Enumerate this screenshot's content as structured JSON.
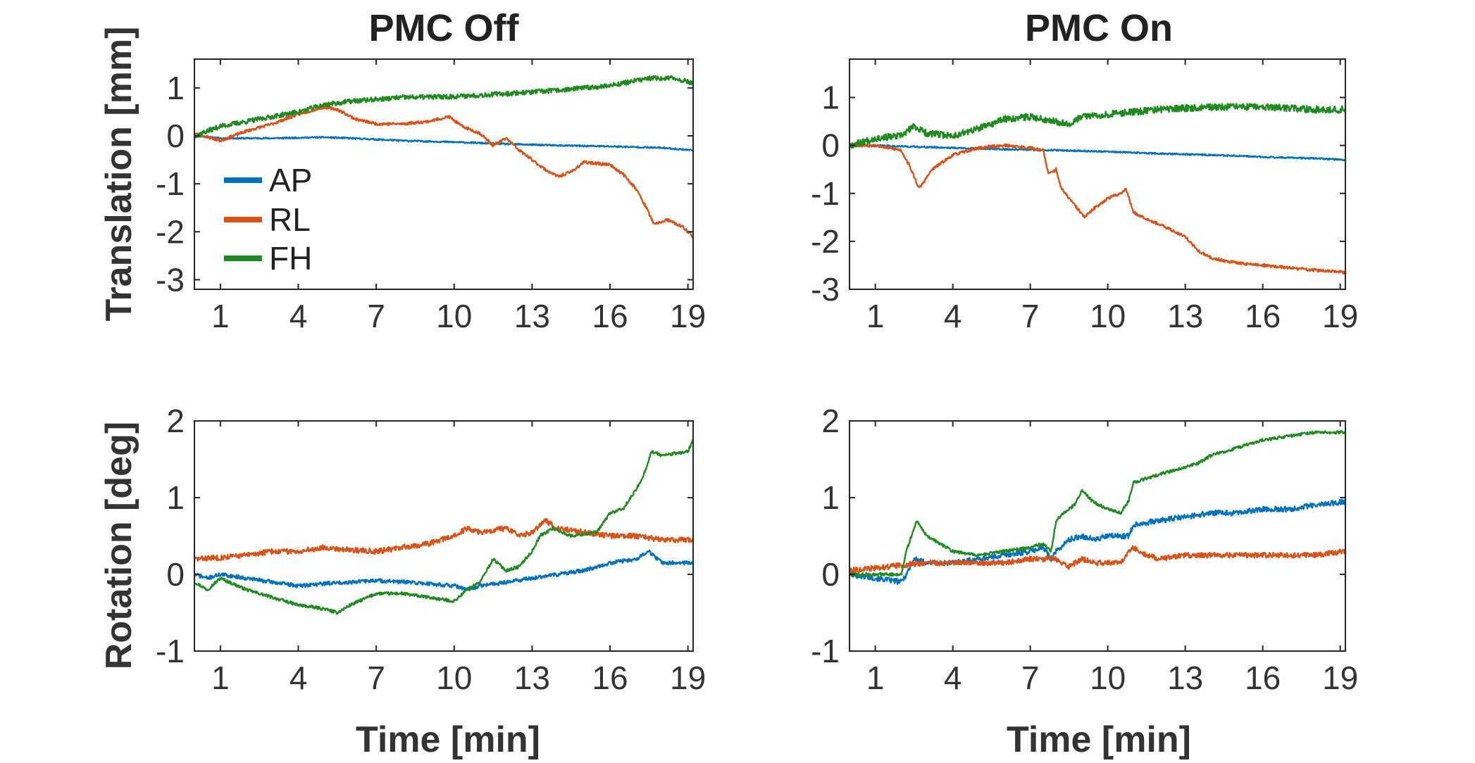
{
  "figure": {
    "colors": {
      "AP": "#0072BD",
      "RL": "#D95319",
      "FH": "#1F8A1F",
      "axis": "#262626",
      "text": "#333333"
    },
    "legend": {
      "entries": [
        "AP",
        "RL",
        "FH"
      ],
      "placement": "inside-left of top-left panel"
    }
  },
  "chart_data": [
    {
      "id": "trans_off",
      "type": "line",
      "title": "PMC Off",
      "xlabel": "",
      "ylabel": "Translation [mm]",
      "xlim": [
        0,
        19.2
      ],
      "ylim": [
        -3.2,
        1.6
      ],
      "xticks": [
        1,
        4,
        7,
        10,
        13,
        16,
        19
      ],
      "yticks": [
        -3,
        -2,
        -1,
        0,
        1
      ],
      "series": [
        {
          "name": "AP",
          "color": "#0072BD",
          "noise": 0.015,
          "seed": 11,
          "x": [
            0,
            1,
            3,
            5,
            6,
            8,
            10,
            12,
            14,
            16,
            18,
            19.2
          ],
          "y": [
            0.0,
            -0.05,
            -0.05,
            -0.03,
            -0.05,
            -0.1,
            -0.13,
            -0.17,
            -0.2,
            -0.22,
            -0.25,
            -0.3
          ]
        },
        {
          "name": "RL",
          "color": "#D95319",
          "noise": 0.03,
          "seed": 23,
          "x": [
            0,
            1,
            2,
            3,
            4,
            5,
            5.5,
            6.2,
            7,
            8,
            9,
            9.8,
            10.3,
            11,
            11.5,
            12,
            12.5,
            13,
            13.5,
            14,
            14.5,
            15,
            16,
            16.5,
            17,
            17.4,
            17.7,
            18.2,
            18.8,
            19.2
          ],
          "y": [
            0.05,
            -0.1,
            0.1,
            0.25,
            0.45,
            0.6,
            0.55,
            0.35,
            0.25,
            0.25,
            0.3,
            0.4,
            0.2,
            0.05,
            -0.2,
            -0.05,
            -0.3,
            -0.5,
            -0.7,
            -0.85,
            -0.75,
            -0.55,
            -0.6,
            -0.8,
            -1.1,
            -1.5,
            -1.85,
            -1.75,
            -1.9,
            -2.1
          ]
        },
        {
          "name": "FH",
          "color": "#1F8A1F",
          "noise": 0.05,
          "seed": 37,
          "x": [
            0,
            1,
            2,
            3,
            4,
            5,
            6,
            8,
            10,
            12,
            14,
            16,
            17.5,
            18.5,
            19.2
          ],
          "y": [
            0.0,
            0.2,
            0.3,
            0.4,
            0.5,
            0.65,
            0.72,
            0.8,
            0.82,
            0.88,
            0.95,
            1.05,
            1.2,
            1.2,
            1.1
          ]
        }
      ]
    },
    {
      "id": "trans_on",
      "type": "line",
      "title": "PMC On",
      "xlabel": "",
      "ylabel": "",
      "xlim": [
        0,
        19.2
      ],
      "ylim": [
        -3.0,
        1.8
      ],
      "xticks": [
        1,
        4,
        7,
        10,
        13,
        16,
        19
      ],
      "yticks": [
        -3,
        -2,
        -1,
        0,
        1
      ],
      "series": [
        {
          "name": "AP",
          "color": "#0072BD",
          "noise": 0.015,
          "seed": 41,
          "x": [
            0,
            1,
            2,
            4,
            6,
            8,
            10,
            12,
            14,
            16,
            18,
            19.2
          ],
          "y": [
            0.0,
            0.0,
            -0.02,
            -0.05,
            -0.08,
            -0.1,
            -0.13,
            -0.17,
            -0.2,
            -0.24,
            -0.27,
            -0.3
          ]
        },
        {
          "name": "RL",
          "color": "#D95319",
          "noise": 0.03,
          "seed": 53,
          "x": [
            0,
            1,
            2,
            2.3,
            2.7,
            3.2,
            4,
            5,
            6,
            7,
            7.5,
            7.7,
            8,
            8.2,
            8.5,
            8.8,
            9.1,
            9.5,
            10,
            10.5,
            10.7,
            11,
            12,
            13,
            13.5,
            14,
            15,
            16,
            17,
            18,
            19.2
          ],
          "y": [
            0.0,
            0.0,
            -0.1,
            -0.4,
            -0.9,
            -0.5,
            -0.2,
            -0.05,
            0.0,
            -0.05,
            -0.1,
            -0.6,
            -0.5,
            -0.9,
            -1.1,
            -1.3,
            -1.5,
            -1.3,
            -1.1,
            -1.0,
            -0.9,
            -1.4,
            -1.65,
            -1.9,
            -2.2,
            -2.35,
            -2.45,
            -2.5,
            -2.55,
            -2.6,
            -2.65
          ]
        },
        {
          "name": "FH",
          "color": "#1F8A1F",
          "noise": 0.07,
          "seed": 67,
          "x": [
            0,
            1,
            2,
            2.5,
            3,
            4,
            5,
            6,
            7,
            8,
            8.5,
            9,
            10,
            12,
            14,
            16,
            18,
            19.2
          ],
          "y": [
            0.0,
            0.15,
            0.2,
            0.4,
            0.25,
            0.2,
            0.35,
            0.55,
            0.6,
            0.5,
            0.45,
            0.6,
            0.65,
            0.75,
            0.8,
            0.8,
            0.75,
            0.75
          ]
        }
      ]
    },
    {
      "id": "rot_off",
      "type": "line",
      "title": "",
      "xlabel": "Time [min]",
      "ylabel": "Rotation [deg]",
      "xlim": [
        0,
        19.2
      ],
      "ylim": [
        -1.0,
        2.0
      ],
      "xticks": [
        1,
        4,
        7,
        10,
        13,
        16,
        19
      ],
      "yticks": [
        -1,
        0,
        1,
        2
      ],
      "series": [
        {
          "name": "AP",
          "color": "#0072BD",
          "noise": 0.025,
          "seed": 71,
          "x": [
            0,
            0.5,
            1,
            2,
            3,
            4,
            5,
            6,
            7,
            8,
            9,
            10,
            10.5,
            11,
            12,
            13,
            14,
            15,
            16,
            17,
            17.5,
            18,
            19.2
          ],
          "y": [
            0.0,
            -0.05,
            0.0,
            -0.05,
            -0.1,
            -0.15,
            -0.12,
            -0.1,
            -0.08,
            -0.1,
            -0.12,
            -0.15,
            -0.2,
            -0.15,
            -0.1,
            -0.05,
            0.0,
            0.05,
            0.15,
            0.2,
            0.3,
            0.15,
            0.15
          ]
        },
        {
          "name": "RL",
          "color": "#D95319",
          "noise": 0.035,
          "seed": 83,
          "x": [
            0,
            1,
            2,
            3,
            4,
            5,
            6,
            7,
            8,
            9,
            10,
            10.5,
            11,
            12,
            12.5,
            13,
            13.5,
            14,
            15,
            16,
            17,
            18,
            19.2
          ],
          "y": [
            0.2,
            0.22,
            0.25,
            0.3,
            0.3,
            0.35,
            0.32,
            0.3,
            0.35,
            0.4,
            0.5,
            0.6,
            0.55,
            0.6,
            0.5,
            0.55,
            0.7,
            0.6,
            0.55,
            0.5,
            0.5,
            0.45,
            0.45
          ]
        },
        {
          "name": "FH",
          "color": "#1F8A1F",
          "noise": 0.02,
          "seed": 97,
          "x": [
            0,
            0.5,
            1,
            2,
            3,
            4,
            5,
            5.5,
            6,
            7,
            8,
            9,
            10,
            10.5,
            11,
            11.5,
            12,
            12.5,
            13,
            13.3,
            13.8,
            14.5,
            15.5,
            16,
            16.5,
            17,
            17.3,
            17.6,
            18,
            19,
            19.2
          ],
          "y": [
            -0.1,
            -0.2,
            -0.05,
            -0.2,
            -0.3,
            -0.4,
            -0.45,
            -0.5,
            -0.4,
            -0.25,
            -0.25,
            -0.3,
            -0.35,
            -0.2,
            -0.1,
            0.2,
            0.05,
            0.1,
            0.3,
            0.5,
            0.6,
            0.5,
            0.55,
            0.8,
            0.85,
            1.1,
            1.3,
            1.6,
            1.55,
            1.6,
            1.75
          ]
        }
      ]
    },
    {
      "id": "rot_on",
      "type": "line",
      "title": "",
      "xlabel": "Time [min]",
      "ylabel": "",
      "xlim": [
        0,
        19.2
      ],
      "ylim": [
        -1.0,
        2.0
      ],
      "xticks": [
        1,
        4,
        7,
        10,
        13,
        16,
        19
      ],
      "yticks": [
        -1,
        0,
        1,
        2
      ],
      "series": [
        {
          "name": "AP",
          "color": "#0072BD",
          "noise": 0.035,
          "seed": 101,
          "x": [
            0,
            1,
            2,
            2.2,
            2.5,
            3,
            4,
            5,
            6,
            7,
            7.5,
            7.8,
            8,
            8.5,
            9,
            9.5,
            10,
            10.5,
            10.8,
            11,
            12,
            13,
            14,
            15,
            16,
            17,
            18,
            19.2
          ],
          "y": [
            0.0,
            -0.05,
            -0.1,
            0.0,
            0.2,
            0.15,
            0.15,
            0.2,
            0.25,
            0.3,
            0.35,
            0.2,
            0.3,
            0.45,
            0.5,
            0.45,
            0.5,
            0.5,
            0.5,
            0.65,
            0.7,
            0.75,
            0.8,
            0.8,
            0.85,
            0.85,
            0.9,
            0.95
          ]
        },
        {
          "name": "RL",
          "color": "#D95319",
          "noise": 0.035,
          "seed": 113,
          "x": [
            0,
            1,
            2,
            3,
            4,
            5,
            6,
            7,
            8,
            8.5,
            9,
            9.5,
            10,
            10.5,
            10.8,
            11,
            11.5,
            12,
            13,
            14,
            15,
            16,
            17,
            18,
            19.2
          ],
          "y": [
            0.05,
            0.08,
            0.12,
            0.15,
            0.15,
            0.15,
            0.15,
            0.2,
            0.2,
            0.1,
            0.2,
            0.15,
            0.15,
            0.15,
            0.3,
            0.35,
            0.25,
            0.2,
            0.25,
            0.25,
            0.25,
            0.25,
            0.25,
            0.25,
            0.3
          ]
        },
        {
          "name": "FH",
          "color": "#1F8A1F",
          "noise": 0.02,
          "seed": 127,
          "x": [
            0,
            1,
            2,
            2.2,
            2.6,
            3,
            3.5,
            4,
            5,
            6,
            7,
            7.5,
            7.8,
            8,
            8.3,
            8.7,
            9,
            9.4,
            10,
            10.5,
            10.8,
            11,
            12,
            13,
            13.5,
            14,
            15,
            16,
            17,
            18,
            19.2
          ],
          "y": [
            0.0,
            0.0,
            0.0,
            0.3,
            0.7,
            0.5,
            0.4,
            0.3,
            0.25,
            0.3,
            0.35,
            0.4,
            0.3,
            0.7,
            0.8,
            0.9,
            1.1,
            0.95,
            0.85,
            0.8,
            0.95,
            1.2,
            1.3,
            1.4,
            1.45,
            1.55,
            1.65,
            1.75,
            1.8,
            1.85,
            1.85
          ]
        }
      ]
    }
  ]
}
